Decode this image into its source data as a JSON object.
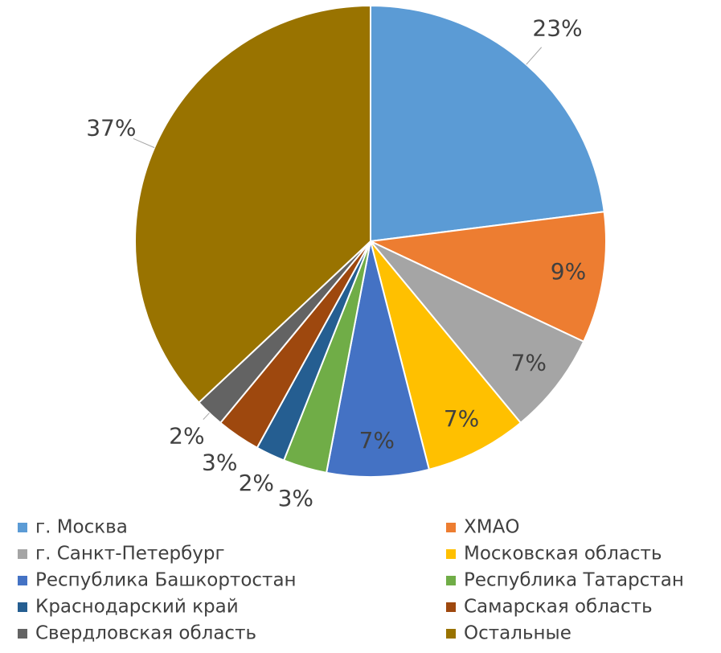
{
  "chart_data": {
    "type": "pie",
    "categories": [
      "г. Москва",
      "ХМАО",
      "г. Санкт-Петербург",
      "Московская область",
      "Республика Башкортостан",
      "Республика Татарстан",
      "Краснодарский край",
      "Самарская область",
      "Свердловская область",
      "Остальные"
    ],
    "values": [
      23,
      9,
      7,
      7,
      7,
      3,
      2,
      3,
      2,
      37
    ],
    "value_labels": [
      "23%",
      "9%",
      "7%",
      "7%",
      "7%",
      "3%",
      "2%",
      "3%",
      "2%",
      "37%"
    ],
    "colors": [
      "#5b9bd5",
      "#ed7d31",
      "#a5a5a5",
      "#ffc000",
      "#4472c4",
      "#70ad47",
      "#255e91",
      "#9e480e",
      "#636363",
      "#997300"
    ],
    "legend": "bottom"
  }
}
